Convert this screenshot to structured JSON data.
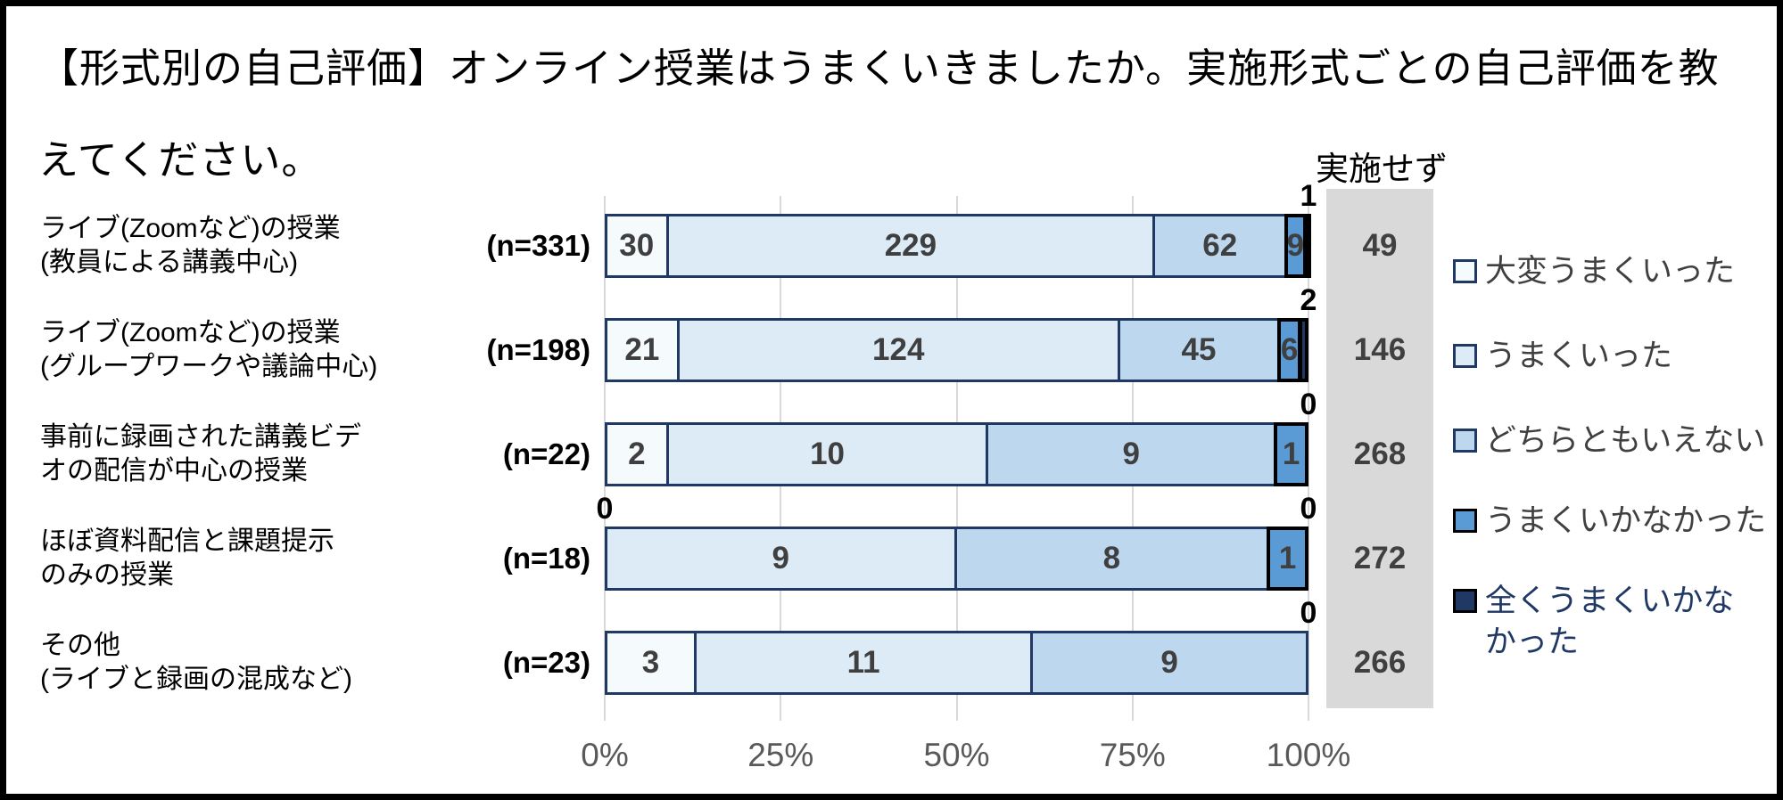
{
  "title": "【形式別の自己評価】オンライン授業はうまくいきましたか。実施形式ごとの自己評価を教えてください。",
  "not_implemented_header": "実施せず",
  "chart_data": {
    "type": "stacked-bar-horizontal",
    "title": "【形式別の自己評価】オンライン授業はうまくいきましたか。実施形式ごとの自己評価を教えてください。",
    "categories": [
      "ライブ(Zoomなど)の授業\n(教員による講義中心)",
      "ライブ(Zoomなど)の授業\n(グループワークや議論中心)",
      "事前に録画された講義ビデ\nオの配信が中心の授業",
      "ほぼ資料配信と課題提示\nのみの授業",
      "その他\n(ライブと録画の混成など)"
    ],
    "sample_sizes": [
      "(n=331)",
      "(n=198)",
      "(n=22)",
      "(n=18)",
      "(n=23)"
    ],
    "totals": [
      331,
      198,
      22,
      18,
      23
    ],
    "series": [
      {
        "name": "大変うまくいった",
        "color": "#F5FAFD",
        "border": "#1F3864",
        "border_px": 3,
        "values": [
          30,
          21,
          2,
          0,
          3
        ]
      },
      {
        "name": "うまくいった",
        "color": "#DDEBF7",
        "border": "#1F3864",
        "border_px": 3,
        "values": [
          229,
          124,
          10,
          9,
          11
        ]
      },
      {
        "name": "どちらともいえない",
        "color": "#BDD7EE",
        "border": "#1F3864",
        "border_px": 3,
        "values": [
          62,
          45,
          9,
          8,
          9
        ]
      },
      {
        "name": "うまくいかなかった",
        "color": "#5B9BD5",
        "border": "#000000",
        "border_px": 4,
        "values": [
          9,
          6,
          1,
          1,
          0
        ]
      },
      {
        "name": "全くうまくいかなかった",
        "color": "#1F3864",
        "border": "#000000",
        "border_px": 4,
        "values": [
          1,
          2,
          0,
          0,
          0
        ]
      }
    ],
    "outside_labels": [
      [
        {
          "text": "1",
          "pos": "end"
        }
      ],
      [
        {
          "text": "2",
          "pos": "end"
        }
      ],
      [
        {
          "text": "0",
          "pos": "end"
        }
      ],
      [
        {
          "text": "0",
          "pos": "start"
        },
        {
          "text": "0",
          "pos": "end"
        }
      ],
      [
        {
          "text": "0",
          "pos": "end"
        }
      ]
    ],
    "not_implemented": {
      "label": "実施せず",
      "values": [
        49,
        146,
        268,
        272,
        266
      ]
    },
    "x_ticks": [
      "0%",
      "25%",
      "50%",
      "75%",
      "100%"
    ],
    "xlim": [
      0,
      100
    ],
    "grid": true,
    "legend_position": "right"
  },
  "legend": {
    "items": [
      {
        "label": "大変うまくいった",
        "display": "大変うまくいった",
        "swatch": "#F5FAFD",
        "border": "#1F3864",
        "text_color": "#404040"
      },
      {
        "label": "うまくいった",
        "display": "うまくいった",
        "swatch": "#DDEBF7",
        "border": "#1F3864",
        "text_color": "#404040"
      },
      {
        "label": "どちらともいえない",
        "display": "どちらともいえない",
        "swatch": "#BDD7EE",
        "border": "#1F3864",
        "text_color": "#404040"
      },
      {
        "label": "うまくいかなかった",
        "display": "うまくいかなかった",
        "swatch": "#5B9BD5",
        "border": "#000000",
        "text_color": "#404040"
      },
      {
        "label": "全くうまくいかなかった",
        "display": "全くうまくいかな\nかった",
        "swatch": "#1F3864",
        "border": "#000000",
        "text_color": "#1F3864"
      }
    ]
  },
  "colors": {
    "grid": "#D9D9D9",
    "gray_column": "#D9D9D9",
    "axis_text": "#595959",
    "bar_value_text": "#3F3F3F",
    "outside_value_text": "#000000"
  }
}
